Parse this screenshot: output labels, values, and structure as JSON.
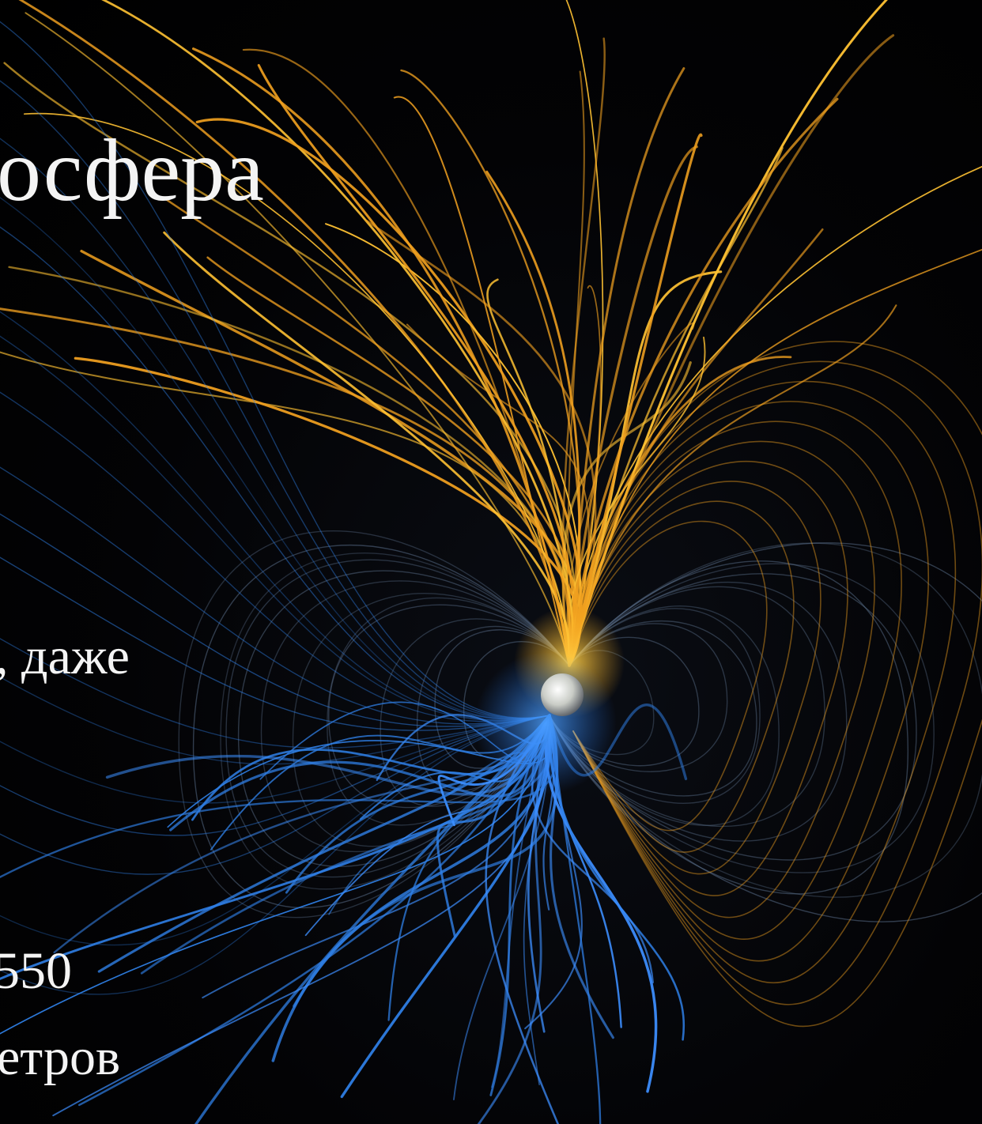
{
  "image": {
    "subject": "planet-magnetic-field-visualization",
    "background_color": "#020203",
    "colors": {
      "north_field_lines": "#f0a020",
      "north_field_core": "#ffc233",
      "south_field_lines": "#2f7fe6",
      "south_field_core": "#3d8fff",
      "faint_field_lines": "#5a6f8a",
      "planet": "#d6d8d4",
      "text": "#f4f4f4"
    }
  },
  "text": {
    "title_fragment": "осфера",
    "line_1_fragment": ", даже",
    "line_2_fragment": "550",
    "line_3_fragment": "етров"
  }
}
